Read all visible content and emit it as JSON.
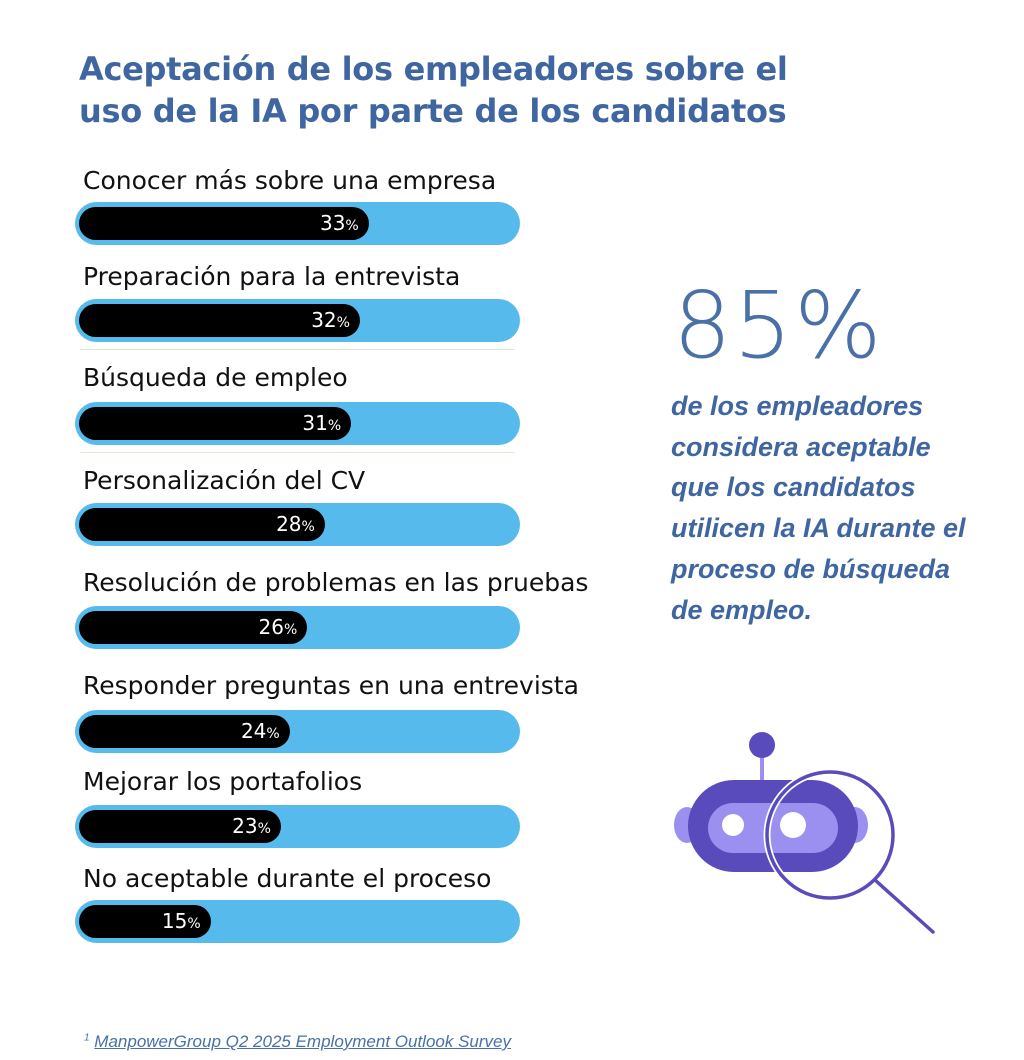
{
  "chart_data": {
    "type": "bar",
    "orientation": "horizontal",
    "title": "Aceptación de los empleadores sobre el uso de la IA por parte de los candidatos",
    "categories": [
      "Conocer más sobre una empresa",
      "Preparación para la entrevista",
      "Búsqueda de empleo",
      "Personalización del CV",
      "Resolución de problemas en las pruebas",
      "Responder preguntas en una entrevista",
      "Mejorar los portafolios",
      "No aceptable durante el proceso"
    ],
    "values": [
      33,
      32,
      31,
      28,
      26,
      24,
      23,
      15
    ],
    "unit": "%",
    "colors": {
      "bar": "#000000",
      "track": "#56bbec",
      "title": "#3f66a0"
    }
  },
  "highlight": {
    "value": "85%",
    "text": "de los empleadores considera aceptable que los candidatos utilicen la IA durante el proceso de búsqueda de empleo."
  },
  "icon": "robot-magnifier-icon",
  "footnote": {
    "marker": "1",
    "text": "ManpowerGroup Q2 2025 Employment Outlook Survey"
  }
}
